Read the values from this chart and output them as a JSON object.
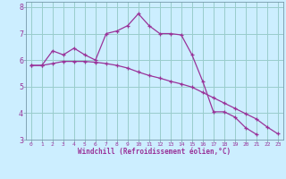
{
  "xlabel": "Windchill (Refroidissement éolien,°C)",
  "bg_color": "#cceeff",
  "grid_color": "#99cccc",
  "line_color": "#993399",
  "spine_color": "#7799aa",
  "x_values": [
    0,
    1,
    2,
    3,
    4,
    5,
    6,
    7,
    8,
    9,
    10,
    11,
    12,
    13,
    14,
    15,
    16,
    17,
    18,
    19,
    20,
    21,
    22,
    23
  ],
  "line1_y": [
    5.8,
    5.8,
    6.35,
    6.2,
    6.45,
    6.2,
    6.0,
    7.0,
    7.1,
    7.3,
    7.75,
    7.3,
    7.0,
    7.0,
    6.95,
    6.2,
    5.2,
    4.05,
    4.05,
    3.85,
    3.45,
    3.2,
    null,
    null
  ],
  "line2_y": [
    5.8,
    5.8,
    5.87,
    5.95,
    5.95,
    5.95,
    5.92,
    5.87,
    5.8,
    5.7,
    5.55,
    5.42,
    5.32,
    5.2,
    5.1,
    4.98,
    4.78,
    4.58,
    4.38,
    4.18,
    3.98,
    3.78,
    3.48,
    3.22
  ],
  "ylim": [
    3.0,
    8.2
  ],
  "yticks": [
    3,
    4,
    5,
    6,
    7,
    8
  ],
  "xlim": [
    -0.5,
    23.5
  ]
}
